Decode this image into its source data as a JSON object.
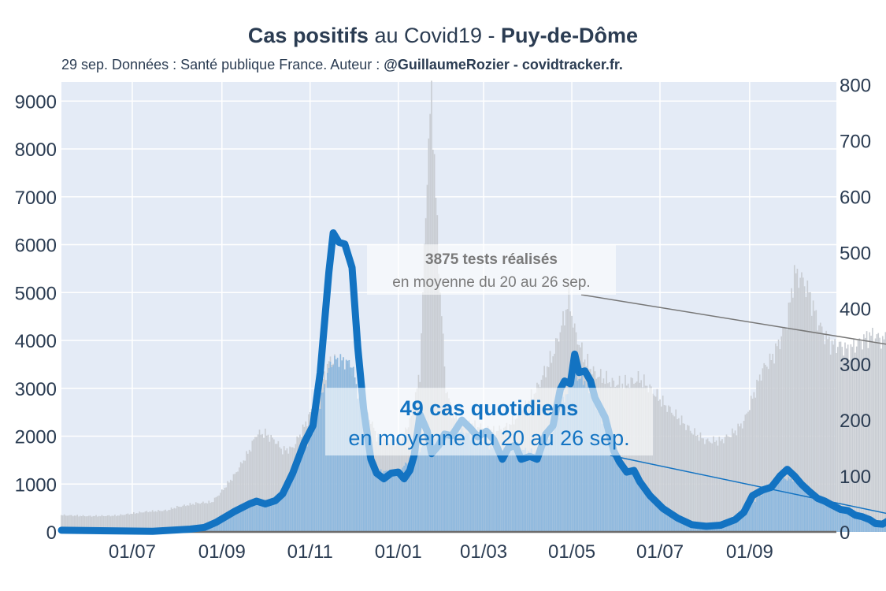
{
  "title": {
    "part1": "Cas positifs",
    "part2": " au Covid19 - ",
    "part3": "Puy-de-Dôme"
  },
  "subtitle": {
    "text": "29 sep. Données : Santé publique France. Auteur : ",
    "credit": "@GuillaumeRozier - covidtracker.fr."
  },
  "annotations": {
    "tests_value": "3875 tests réalisés",
    "tests_period": "en moyenne du 20 au 26 sep.",
    "cases_value": "49 cas quotidiens",
    "cases_period": "en moyenne du 20 au 26 sep."
  },
  "colors": {
    "plot_bg": "#e4ebf6",
    "cases_line": "#1373c2",
    "cases_bar": "#8fb9de",
    "tests_bar": "#c9cdd3",
    "text": "#2b3c52"
  },
  "chart_data": {
    "type": "line",
    "x_date_range": [
      "2020-05-13",
      "2021-10-31"
    ],
    "x_tick_labels": [
      "01/07",
      "01/09",
      "01/11",
      "01/01",
      "01/03",
      "01/05",
      "01/07",
      "01/09"
    ],
    "x_tick_dates": [
      "2020-07-01",
      "2020-09-01",
      "2020-11-01",
      "2021-01-01",
      "2021-03-01",
      "2021-05-01",
      "2021-07-01",
      "2021-09-01"
    ],
    "y_left": {
      "range": [
        0,
        9400
      ],
      "ticks": [
        0,
        1000,
        2000,
        3000,
        4000,
        5000,
        6000,
        7000,
        8000,
        9000
      ],
      "series": "tests"
    },
    "y_right": {
      "range": [
        0,
        805
      ],
      "ticks": [
        0,
        100,
        200,
        300,
        400,
        500,
        600,
        700,
        800
      ],
      "series": "cases"
    },
    "grid": true,
    "series": [
      {
        "key": "cases_avg",
        "style": "thick line",
        "axis": "right",
        "points": [
          [
            "2020-05-13",
            3
          ],
          [
            "2020-06-15",
            2
          ],
          [
            "2020-07-15",
            1
          ],
          [
            "2020-08-10",
            5
          ],
          [
            "2020-08-20",
            8
          ],
          [
            "2020-08-28",
            17
          ],
          [
            "2020-09-10",
            37
          ],
          [
            "2020-09-20",
            50
          ],
          [
            "2020-09-25",
            55
          ],
          [
            "2020-10-01",
            50
          ],
          [
            "2020-10-08",
            56
          ],
          [
            "2020-10-13",
            68
          ],
          [
            "2020-10-20",
            105
          ],
          [
            "2020-10-28",
            160
          ],
          [
            "2020-11-03",
            190
          ],
          [
            "2020-11-08",
            285
          ],
          [
            "2020-11-14",
            465
          ],
          [
            "2020-11-17",
            535
          ],
          [
            "2020-11-21",
            518
          ],
          [
            "2020-11-25",
            515
          ],
          [
            "2020-11-30",
            473
          ],
          [
            "2020-12-04",
            330
          ],
          [
            "2020-12-08",
            220
          ],
          [
            "2020-12-13",
            130
          ],
          [
            "2020-12-17",
            105
          ],
          [
            "2020-12-22",
            95
          ],
          [
            "2020-12-27",
            105
          ],
          [
            "2021-01-01",
            107
          ],
          [
            "2021-01-05",
            95
          ],
          [
            "2021-01-09",
            110
          ],
          [
            "2021-01-12",
            137
          ],
          [
            "2021-01-16",
            210
          ],
          [
            "2021-01-21",
            180
          ],
          [
            "2021-01-24",
            140
          ],
          [
            "2021-01-29",
            155
          ],
          [
            "2021-02-02",
            175
          ],
          [
            "2021-02-07",
            172
          ],
          [
            "2021-02-14",
            200
          ],
          [
            "2021-02-20",
            185
          ],
          [
            "2021-02-25",
            170
          ],
          [
            "2021-03-03",
            180
          ],
          [
            "2021-03-08",
            165
          ],
          [
            "2021-03-14",
            130
          ],
          [
            "2021-03-18",
            150
          ],
          [
            "2021-03-23",
            155
          ],
          [
            "2021-03-27",
            130
          ],
          [
            "2021-04-02",
            135
          ],
          [
            "2021-04-07",
            130
          ],
          [
            "2021-04-13",
            175
          ],
          [
            "2021-04-18",
            190
          ],
          [
            "2021-04-23",
            255
          ],
          [
            "2021-04-26",
            270
          ],
          [
            "2021-04-30",
            265
          ],
          [
            "2021-05-03",
            318
          ],
          [
            "2021-05-06",
            285
          ],
          [
            "2021-05-10",
            288
          ],
          [
            "2021-05-14",
            270
          ],
          [
            "2021-05-17",
            240
          ],
          [
            "2021-05-24",
            205
          ],
          [
            "2021-05-30",
            145
          ],
          [
            "2021-06-03",
            125
          ],
          [
            "2021-06-08",
            107
          ],
          [
            "2021-06-13",
            110
          ],
          [
            "2021-06-17",
            90
          ],
          [
            "2021-06-24",
            65
          ],
          [
            "2021-07-03",
            42
          ],
          [
            "2021-07-13",
            25
          ],
          [
            "2021-07-23",
            13
          ],
          [
            "2021-08-02",
            10
          ],
          [
            "2021-08-12",
            12
          ],
          [
            "2021-08-22",
            22
          ],
          [
            "2021-08-28",
            35
          ],
          [
            "2021-09-03",
            65
          ],
          [
            "2021-09-10",
            75
          ],
          [
            "2021-09-16",
            80
          ],
          [
            "2021-09-22",
            100
          ],
          [
            "2021-09-27",
            112
          ],
          [
            "2021-10-02",
            100
          ],
          [
            "2021-10-07",
            85
          ],
          [
            "2021-10-12",
            73
          ],
          [
            "2021-10-18",
            60
          ],
          [
            "2021-10-23",
            55
          ],
          [
            "2021-10-28",
            48
          ],
          [
            "2021-11-03",
            40
          ],
          [
            "2021-11-08",
            38
          ],
          [
            "2021-11-13",
            30
          ],
          [
            "2021-11-18",
            27
          ],
          [
            "2021-11-23",
            22
          ],
          [
            "2021-11-27",
            15
          ],
          [
            "2021-12-02",
            14
          ],
          [
            "2021-12-06",
            20
          ],
          [
            "2021-12-10",
            25
          ],
          [
            "2021-12-14",
            28
          ]
        ]
      },
      {
        "key": "cases_daily",
        "style": "bars",
        "axis": "right",
        "points": [
          [
            "2020-05-13",
            3
          ],
          [
            "2020-06-15",
            2
          ],
          [
            "2020-07-15",
            2
          ],
          [
            "2020-08-10",
            5
          ],
          [
            "2020-08-28",
            15
          ],
          [
            "2020-09-10",
            35
          ],
          [
            "2020-09-25",
            50
          ],
          [
            "2020-10-08",
            55
          ],
          [
            "2020-10-20",
            100
          ],
          [
            "2020-10-28",
            150
          ],
          [
            "2020-11-03",
            180
          ],
          [
            "2020-11-10",
            250
          ],
          [
            "2020-11-15",
            300
          ],
          [
            "2020-11-20",
            310
          ],
          [
            "2020-11-30",
            300
          ],
          [
            "2020-12-04",
            250
          ],
          [
            "2020-12-10",
            150
          ],
          [
            "2020-12-17",
            110
          ],
          [
            "2021-01-01",
            105
          ],
          [
            "2021-01-12",
            140
          ],
          [
            "2021-01-21",
            160
          ],
          [
            "2021-02-02",
            170
          ],
          [
            "2021-02-14",
            180
          ],
          [
            "2021-02-25",
            165
          ],
          [
            "2021-03-08",
            150
          ],
          [
            "2021-03-23",
            150
          ],
          [
            "2021-04-07",
            140
          ],
          [
            "2021-04-18",
            180
          ],
          [
            "2021-04-26",
            240
          ],
          [
            "2021-05-03",
            280
          ],
          [
            "2021-05-10",
            270
          ],
          [
            "2021-05-17",
            230
          ],
          [
            "2021-05-30",
            150
          ],
          [
            "2021-06-08",
            110
          ],
          [
            "2021-06-17",
            90
          ],
          [
            "2021-07-03",
            45
          ],
          [
            "2021-07-23",
            15
          ],
          [
            "2021-08-12",
            12
          ],
          [
            "2021-08-28",
            35
          ],
          [
            "2021-09-10",
            70
          ],
          [
            "2021-09-22",
            95
          ],
          [
            "2021-10-02",
            95
          ],
          [
            "2021-10-12",
            75
          ],
          [
            "2021-10-23",
            55
          ],
          [
            "2021-11-03",
            42
          ],
          [
            "2021-11-18",
            28
          ],
          [
            "2021-12-02",
            16
          ],
          [
            "2021-12-14",
            28
          ]
        ]
      },
      {
        "key": "tests_daily",
        "style": "bars",
        "axis": "left",
        "points": [
          [
            "2020-05-13",
            350
          ],
          [
            "2020-06-01",
            330
          ],
          [
            "2020-06-20",
            340
          ],
          [
            "2020-07-10",
            420
          ],
          [
            "2020-07-25",
            450
          ],
          [
            "2020-08-01",
            520
          ],
          [
            "2020-08-15",
            600
          ],
          [
            "2020-08-25",
            620
          ],
          [
            "2020-09-01",
            850
          ],
          [
            "2020-09-10",
            1200
          ],
          [
            "2020-09-20",
            1700
          ],
          [
            "2020-09-25",
            2050
          ],
          [
            "2020-10-01",
            2050
          ],
          [
            "2020-10-08",
            1900
          ],
          [
            "2020-10-13",
            1700
          ],
          [
            "2020-10-20",
            1750
          ],
          [
            "2020-10-28",
            2200
          ],
          [
            "2020-11-03",
            2600
          ],
          [
            "2020-11-10",
            3200
          ],
          [
            "2020-11-15",
            3600
          ],
          [
            "2020-11-25",
            3550
          ],
          [
            "2020-12-01",
            3300
          ],
          [
            "2020-12-06",
            2600
          ],
          [
            "2020-12-12",
            2400
          ],
          [
            "2020-12-17",
            2000
          ],
          [
            "2020-12-25",
            1900
          ],
          [
            "2021-01-03",
            1900
          ],
          [
            "2021-01-10",
            2400
          ],
          [
            "2021-01-16",
            3300
          ],
          [
            "2021-01-21",
            7500
          ],
          [
            "2021-01-24",
            9200
          ],
          [
            "2021-01-27",
            7000
          ],
          [
            "2021-01-30",
            5000
          ],
          [
            "2021-02-03",
            3000
          ],
          [
            "2021-02-08",
            2400
          ],
          [
            "2021-02-14",
            2300
          ],
          [
            "2021-02-25",
            2200
          ],
          [
            "2021-03-08",
            2100
          ],
          [
            "2021-03-18",
            2200
          ],
          [
            "2021-03-27",
            2500
          ],
          [
            "2021-04-07",
            3000
          ],
          [
            "2021-04-18",
            3700
          ],
          [
            "2021-04-26",
            4500
          ],
          [
            "2021-04-29",
            4900
          ],
          [
            "2021-05-03",
            4200
          ],
          [
            "2021-05-10",
            3600
          ],
          [
            "2021-05-17",
            3300
          ],
          [
            "2021-05-30",
            3100
          ],
          [
            "2021-06-08",
            3100
          ],
          [
            "2021-06-17",
            3200
          ],
          [
            "2021-06-24",
            3000
          ],
          [
            "2021-07-03",
            2700
          ],
          [
            "2021-07-13",
            2400
          ],
          [
            "2021-07-23",
            2100
          ],
          [
            "2021-08-02",
            1900
          ],
          [
            "2021-08-12",
            1900
          ],
          [
            "2021-08-22",
            2100
          ],
          [
            "2021-08-28",
            2300
          ],
          [
            "2021-09-03",
            2800
          ],
          [
            "2021-09-10",
            3400
          ],
          [
            "2021-09-16",
            3600
          ],
          [
            "2021-09-22",
            4000
          ],
          [
            "2021-09-27",
            4400
          ],
          [
            "2021-10-02",
            5400
          ],
          [
            "2021-10-07",
            5300
          ],
          [
            "2021-10-12",
            5000
          ],
          [
            "2021-10-18",
            4400
          ],
          [
            "2021-10-23",
            4100
          ],
          [
            "2021-10-28",
            3900
          ],
          [
            "2021-11-03",
            3900
          ],
          [
            "2021-11-08",
            3800
          ],
          [
            "2021-11-13",
            3900
          ],
          [
            "2021-11-18",
            4000
          ],
          [
            "2021-11-23",
            4100
          ],
          [
            "2021-11-27",
            4100
          ],
          [
            "2021-12-02",
            4000
          ],
          [
            "2021-12-06",
            4050
          ],
          [
            "2021-12-10",
            4100
          ],
          [
            "2021-12-14",
            3875
          ]
        ]
      }
    ]
  }
}
